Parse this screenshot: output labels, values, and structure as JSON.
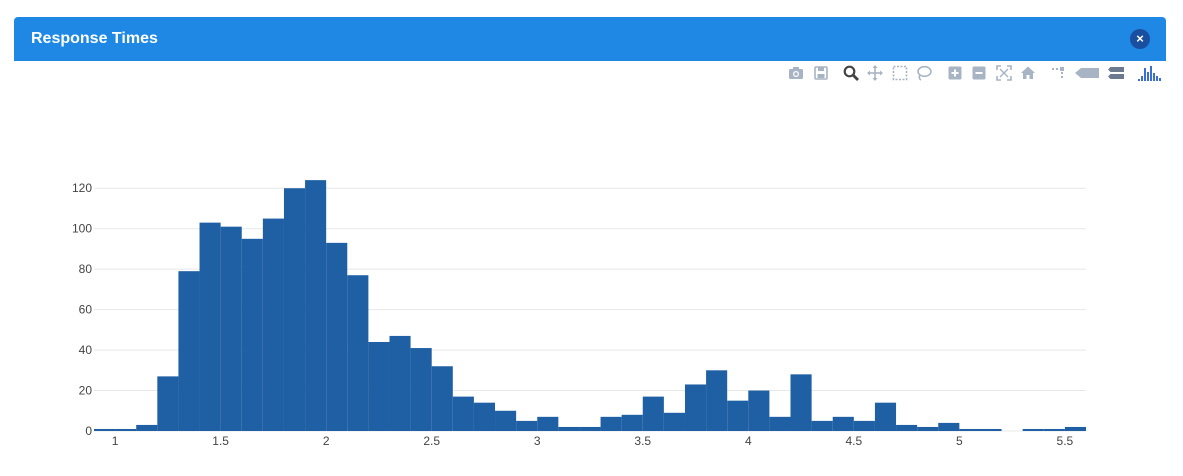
{
  "panel": {
    "title": "Response Times",
    "close_label": "×"
  },
  "modebar": {
    "buttons": [
      "camera-icon",
      "save-icon",
      "zoom-icon",
      "pan-icon",
      "box-select-icon",
      "lasso-select-icon",
      "zoom-in-icon",
      "zoom-out-icon",
      "autoscale-icon",
      "reset-axes-icon",
      "toggle-spikelines-icon",
      "hover-closest-icon",
      "hover-compare-icon",
      "plotly-logo-icon"
    ]
  },
  "colors": {
    "header": "#1f88e5",
    "bar": "#1f5fa3",
    "grid": "#e8e8e8",
    "icon": "#a8b4c3",
    "icon_active": "#444444"
  },
  "chart_data": {
    "type": "bar",
    "title": "",
    "xlabel": "",
    "ylabel": "",
    "bin_start": 0.9,
    "bin_width": 0.1,
    "values": [
      1,
      1,
      3,
      27,
      79,
      103,
      101,
      95,
      105,
      120,
      124,
      93,
      77,
      44,
      47,
      41,
      32,
      17,
      14,
      10,
      5,
      7,
      2,
      2,
      7,
      8,
      17,
      9,
      23,
      30,
      15,
      20,
      7,
      28,
      5,
      7,
      5,
      14,
      3,
      2,
      4,
      1,
      1,
      0,
      1,
      1,
      2
    ],
    "xlim": [
      0.9,
      5.6
    ],
    "ylim": [
      0,
      130
    ],
    "x_ticks": [
      {
        "v": 1,
        "label": "1"
      },
      {
        "v": 1.5,
        "label": "1.5"
      },
      {
        "v": 2,
        "label": "2"
      },
      {
        "v": 2.5,
        "label": "2.5"
      },
      {
        "v": 3,
        "label": "3"
      },
      {
        "v": 3.5,
        "label": "3.5"
      },
      {
        "v": 4,
        "label": "4"
      },
      {
        "v": 4.5,
        "label": "4.5"
      },
      {
        "v": 5,
        "label": "5"
      },
      {
        "v": 5.5,
        "label": "5.5"
      }
    ],
    "y_ticks": [
      {
        "v": 0,
        "label": "0"
      },
      {
        "v": 20,
        "label": "20"
      },
      {
        "v": 40,
        "label": "40"
      },
      {
        "v": 60,
        "label": "60"
      },
      {
        "v": 80,
        "label": "80"
      },
      {
        "v": 100,
        "label": "100"
      },
      {
        "v": 120,
        "label": "120"
      }
    ],
    "grid": true
  }
}
